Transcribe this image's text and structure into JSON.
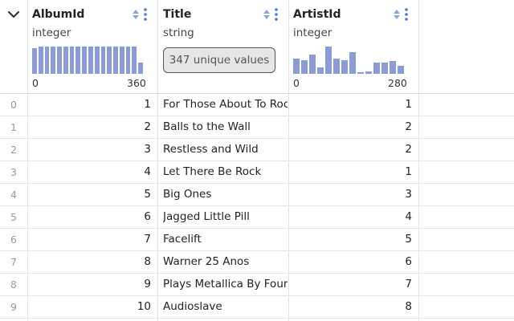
{
  "columns": [
    {
      "name": "AlbumId",
      "type": "integer",
      "hist_min": "0",
      "hist_max": "360",
      "hist": [
        0.95,
        1,
        1,
        1,
        1,
        1,
        1,
        1,
        1,
        1,
        1,
        1,
        1,
        1,
        1,
        1,
        1,
        0.4
      ]
    },
    {
      "name": "Title",
      "type": "string",
      "summary": "347 unique values"
    },
    {
      "name": "ArtistId",
      "type": "integer",
      "hist_min": "0",
      "hist_max": "280",
      "hist": [
        0.55,
        0.5,
        0.72,
        0.25,
        1,
        0.55,
        0.5,
        0.8,
        0.06,
        0.1,
        0.42,
        0.42,
        0.48,
        0.3
      ]
    }
  ],
  "rows": [
    {
      "index": "0",
      "album_id": "1",
      "title": "For Those About To Rock We Salute You",
      "artist_id": "1"
    },
    {
      "index": "1",
      "album_id": "2",
      "title": "Balls to the Wall",
      "artist_id": "2"
    },
    {
      "index": "2",
      "album_id": "3",
      "title": "Restless and Wild",
      "artist_id": "2"
    },
    {
      "index": "3",
      "album_id": "4",
      "title": "Let There Be Rock",
      "artist_id": "1"
    },
    {
      "index": "4",
      "album_id": "5",
      "title": "Big Ones",
      "artist_id": "3"
    },
    {
      "index": "5",
      "album_id": "6",
      "title": "Jagged Little Pill",
      "artist_id": "4"
    },
    {
      "index": "6",
      "album_id": "7",
      "title": "Facelift",
      "artist_id": "5"
    },
    {
      "index": "7",
      "album_id": "8",
      "title": "Warner 25 Anos",
      "artist_id": "6"
    },
    {
      "index": "8",
      "album_id": "9",
      "title": "Plays Metallica By Four Cellos",
      "artist_id": "7"
    },
    {
      "index": "9",
      "album_id": "10",
      "title": "Audioslave",
      "artist_id": "8"
    }
  ],
  "colors": {
    "histogram_bar": "#8a9bd8",
    "icon_accent": "#4a7bd0"
  },
  "icons": {
    "collapse": "chevron-down-icon",
    "sort": "sort-icon",
    "menu": "kebab-menu-icon"
  }
}
